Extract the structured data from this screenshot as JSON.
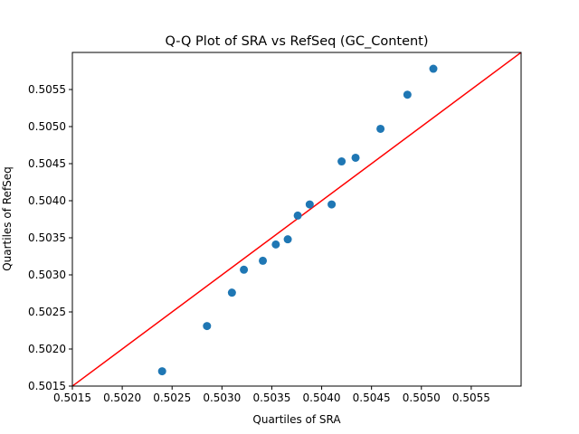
{
  "chart_data": {
    "type": "scatter",
    "title": "Q-Q Plot of SRA vs RefSeq (GC_Content)",
    "xlabel": "Quartiles of SRA",
    "ylabel": "Quartiles of RefSeq",
    "xlim": [
      0.5015,
      0.506
    ],
    "ylim": [
      0.5015,
      0.506
    ],
    "xticks": [
      "0.5015",
      "0.5020",
      "0.5025",
      "0.5030",
      "0.5035",
      "0.5040",
      "0.5045",
      "0.5050",
      "0.5055"
    ],
    "yticks": [
      "0.5015",
      "0.5020",
      "0.5025",
      "0.5030",
      "0.5035",
      "0.5040",
      "0.5045",
      "0.5050",
      "0.5055"
    ],
    "grid": false,
    "series": [
      {
        "points": [
          [
            0.5024,
            0.5017
          ],
          [
            0.50285,
            0.50231
          ],
          [
            0.5031,
            0.50276
          ],
          [
            0.50322,
            0.50307
          ],
          [
            0.50341,
            0.50319
          ],
          [
            0.50354,
            0.50341
          ],
          [
            0.50366,
            0.50348
          ],
          [
            0.50376,
            0.5038
          ],
          [
            0.50388,
            0.50395
          ],
          [
            0.5041,
            0.50395
          ],
          [
            0.5042,
            0.50453
          ],
          [
            0.50434,
            0.50458
          ],
          [
            0.50459,
            0.50497
          ],
          [
            0.50486,
            0.50543
          ],
          [
            0.50512,
            0.50578
          ]
        ]
      }
    ],
    "reference_line": {
      "type": "y=x"
    },
    "colors": {
      "points": "#1f77b4",
      "reference_line": "#ff0000"
    }
  }
}
